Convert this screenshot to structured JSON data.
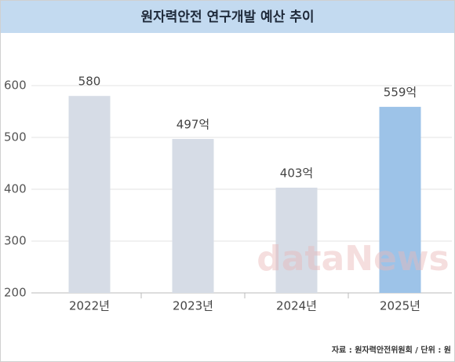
{
  "chart_data": {
    "type": "bar",
    "title": "원자력안전 연구개발 예산 추이",
    "categories": [
      "2022년",
      "2023년",
      "2024년",
      "2025년"
    ],
    "values": [
      580,
      497,
      403,
      559
    ],
    "value_labels": [
      "580",
      "497억",
      "403억",
      "559억"
    ],
    "colors": [
      "#d6dce6",
      "#d6dce6",
      "#d6dce6",
      "#9dc3e8"
    ],
    "ylim": [
      200,
      700
    ],
    "yticks": [
      200,
      300,
      400,
      500,
      600
    ],
    "grid": true,
    "watermark": "dataNews",
    "source": "자료 : 원자력안전위원회 / 단위 : 원"
  }
}
